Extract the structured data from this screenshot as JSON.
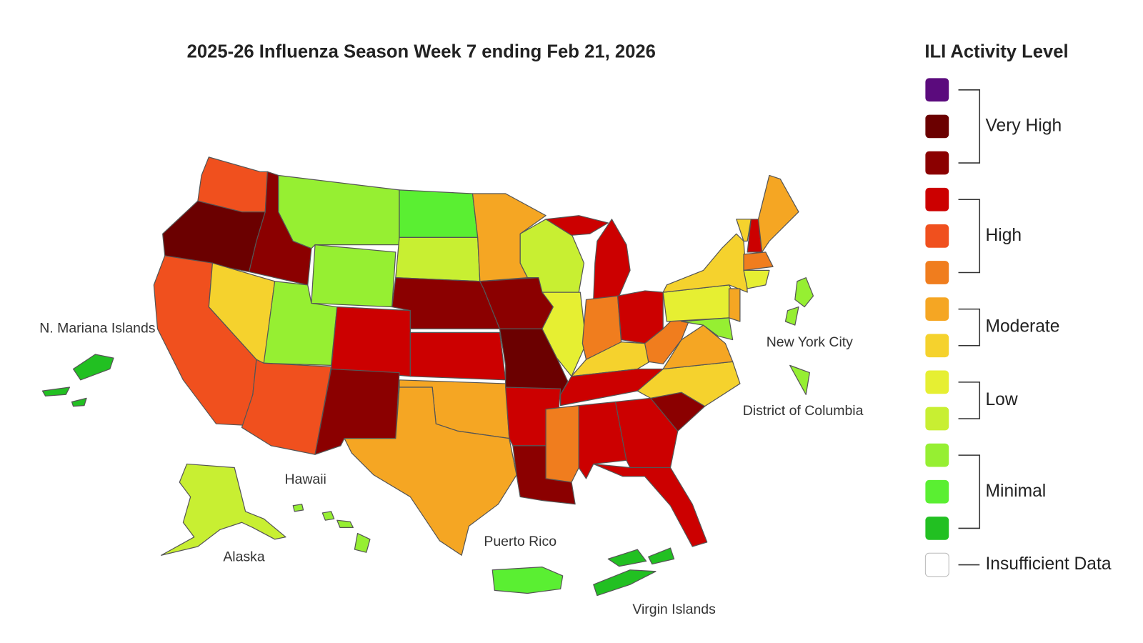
{
  "title": "2025-26 Influenza Season Week 7 ending Feb 21, 2026",
  "legend": {
    "title": "ILI Activity Level",
    "groups": [
      {
        "label": "Very High",
        "colors": [
          "#5b0b7d",
          "#6b0000",
          "#8b0000"
        ]
      },
      {
        "label": "High",
        "colors": [
          "#cc0000",
          "#f0501e",
          "#f07d1e"
        ]
      },
      {
        "label": "Moderate",
        "colors": [
          "#f5a623",
          "#f5d22d"
        ]
      },
      {
        "label": "Low",
        "colors": [
          "#e6ef32",
          "#c8ef32"
        ]
      },
      {
        "label": "Minimal",
        "colors": [
          "#96ef32",
          "#5aef32",
          "#22c022"
        ]
      }
    ],
    "insufficient": {
      "label": "Insufficient Data",
      "color": "#ffffff"
    }
  },
  "map_labels": [
    "N. Mariana Islands",
    "New York City",
    "District of Columbia",
    "Hawaii",
    "Alaska",
    "Puerto Rico",
    "Virgin Islands"
  ]
}
